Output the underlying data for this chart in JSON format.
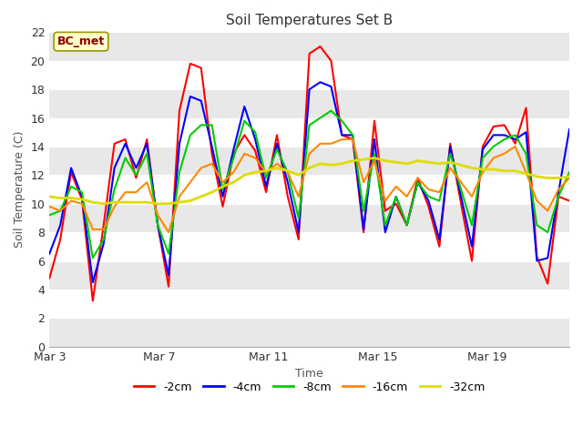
{
  "title": "Soil Temperatures Set B",
  "xlabel": "Time",
  "ylabel": "Soil Temperature (C)",
  "annotation": "BC_met",
  "ylim": [
    0,
    22
  ],
  "yticks": [
    0,
    2,
    4,
    6,
    8,
    10,
    12,
    14,
    16,
    18,
    20,
    22
  ],
  "xtick_labels": [
    "Mar 3",
    "Mar 7",
    "Mar 11",
    "Mar 15",
    "Mar 19"
  ],
  "xtick_positions": [
    0,
    4,
    8,
    12,
    16
  ],
  "series": {
    "-2cm": {
      "color": "#ff0000",
      "lw": 1.5
    },
    "-4cm": {
      "color": "#0000ff",
      "lw": 1.5
    },
    "-8cm": {
      "color": "#00cc00",
      "lw": 1.5
    },
    "-16cm": {
      "color": "#ff8800",
      "lw": 1.5
    },
    "-32cm": {
      "color": "#dddd00",
      "lw": 2.0
    }
  },
  "n_days": 19,
  "data_2cm": [
    4.8,
    7.5,
    12.2,
    10.3,
    3.2,
    8.5,
    14.2,
    14.5,
    11.8,
    14.5,
    8.5,
    4.2,
    16.5,
    19.8,
    19.5,
    13.5,
    9.8,
    13.5,
    14.8,
    13.7,
    10.8,
    14.8,
    10.5,
    7.5,
    20.5,
    21.0,
    20.0,
    14.8,
    14.5,
    8.0,
    15.8,
    9.5,
    10.0,
    8.5,
    11.8,
    9.8,
    7.0,
    14.2,
    10.0,
    6.0,
    14.0,
    15.4,
    15.5,
    14.2,
    16.7,
    6.3,
    4.4,
    10.5,
    10.2
  ],
  "data_4cm": [
    6.5,
    8.5,
    12.5,
    10.5,
    4.5,
    7.2,
    12.5,
    14.2,
    12.5,
    14.2,
    8.5,
    5.0,
    14.2,
    17.5,
    17.2,
    14.0,
    10.5,
    13.8,
    16.8,
    14.5,
    11.2,
    14.2,
    11.5,
    8.0,
    18.0,
    18.5,
    18.2,
    14.8,
    14.8,
    8.2,
    14.5,
    8.0,
    10.5,
    8.5,
    11.5,
    10.2,
    7.5,
    14.0,
    10.5,
    7.0,
    13.8,
    14.8,
    14.8,
    14.5,
    15.0,
    6.0,
    6.2,
    10.8,
    15.2
  ],
  "data_8cm": [
    9.2,
    9.5,
    11.2,
    10.8,
    6.2,
    7.5,
    11.0,
    13.2,
    12.0,
    13.5,
    8.5,
    6.5,
    12.2,
    14.8,
    15.5,
    15.5,
    11.0,
    13.2,
    15.8,
    15.0,
    11.8,
    13.8,
    12.2,
    9.0,
    15.5,
    16.0,
    16.5,
    15.8,
    14.8,
    9.5,
    13.5,
    8.5,
    10.5,
    8.5,
    11.5,
    10.5,
    10.2,
    13.5,
    11.0,
    8.5,
    13.2,
    14.0,
    14.5,
    14.8,
    13.5,
    8.5,
    8.0,
    10.5,
    12.2
  ],
  "data_16cm": [
    9.8,
    9.5,
    10.2,
    10.0,
    8.2,
    8.2,
    9.8,
    10.8,
    10.8,
    11.5,
    9.2,
    8.0,
    10.5,
    11.5,
    12.5,
    12.8,
    11.5,
    12.2,
    13.5,
    13.2,
    12.2,
    12.8,
    12.2,
    10.5,
    13.5,
    14.2,
    14.2,
    14.5,
    14.5,
    11.5,
    13.0,
    10.2,
    11.2,
    10.5,
    11.8,
    11.0,
    10.8,
    12.5,
    11.5,
    10.5,
    12.2,
    13.2,
    13.5,
    14.0,
    12.2,
    10.2,
    9.5,
    11.0,
    11.8
  ],
  "data_32cm": [
    10.5,
    10.4,
    10.4,
    10.3,
    10.1,
    10.0,
    10.1,
    10.1,
    10.1,
    10.1,
    10.0,
    10.0,
    10.1,
    10.2,
    10.5,
    10.8,
    11.2,
    11.5,
    12.0,
    12.2,
    12.3,
    12.5,
    12.3,
    12.0,
    12.5,
    12.8,
    12.7,
    12.8,
    13.0,
    13.1,
    13.2,
    13.0,
    12.9,
    12.8,
    13.0,
    12.9,
    12.8,
    12.9,
    12.7,
    12.5,
    12.4,
    12.4,
    12.3,
    12.3,
    12.1,
    11.9,
    11.8,
    11.8,
    11.9
  ]
}
